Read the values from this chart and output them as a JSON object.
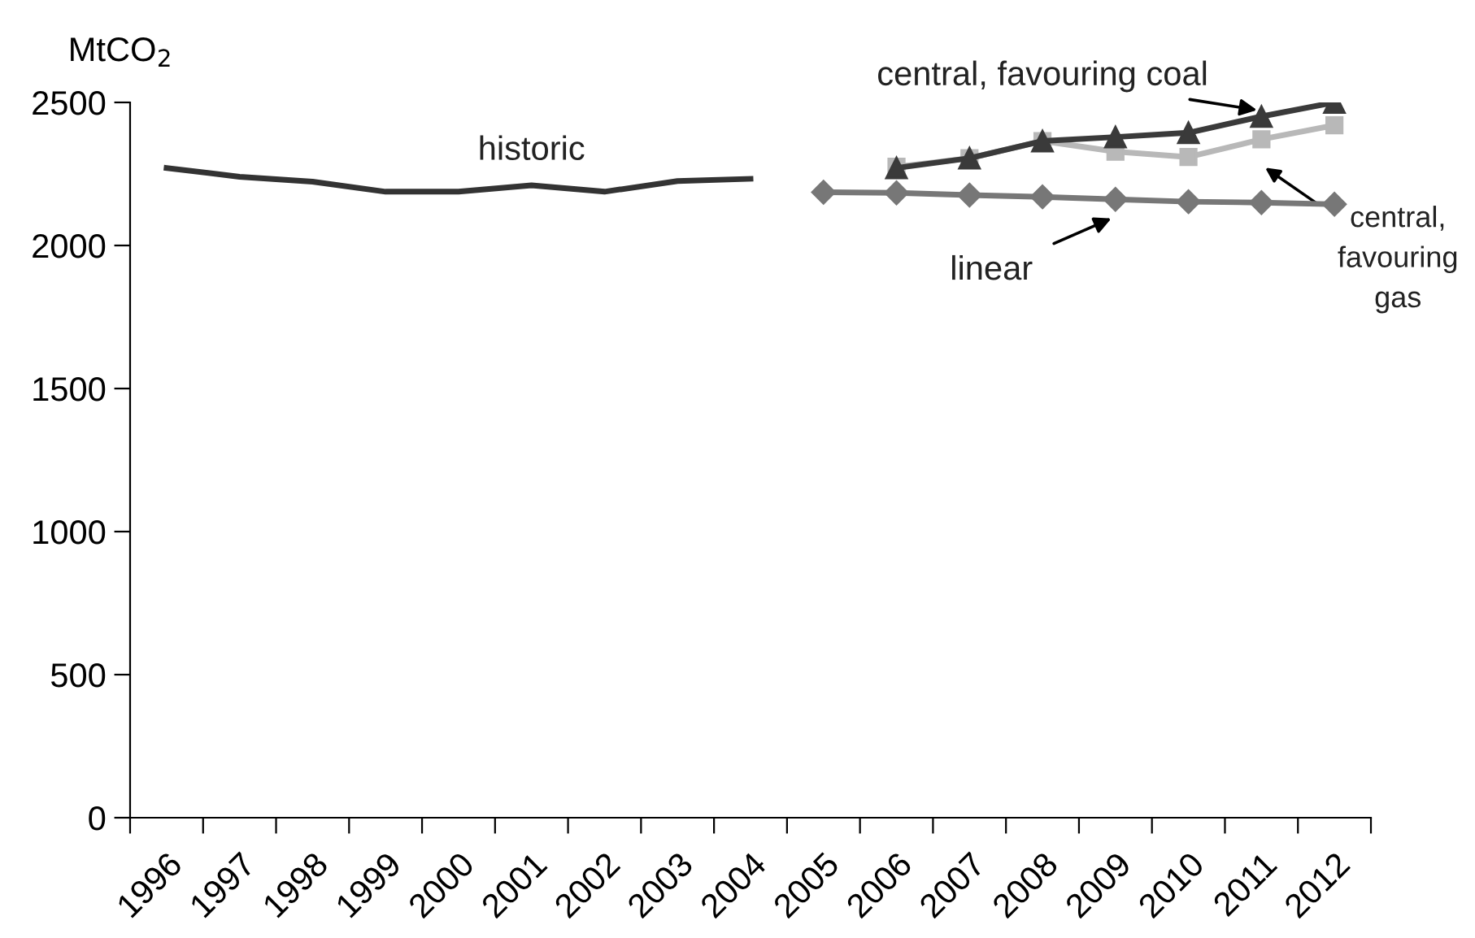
{
  "chart_data": {
    "type": "line",
    "ylabel": "MtCO$_{2}$",
    "categories": [
      "1996",
      "1997",
      "1998",
      "1999",
      "2000",
      "2001",
      "2002",
      "2003",
      "2004",
      "2005",
      "2006",
      "2007",
      "2008",
      "2009",
      "2010",
      "2011",
      "2012"
    ],
    "series": [
      {
        "name": "historic",
        "color": "#333333",
        "marker": "none",
        "values": [
          2271,
          2240,
          2223,
          2188,
          2188,
          2210,
          2188,
          2225,
          2233,
          null,
          null,
          null,
          null,
          null,
          null,
          null,
          null
        ]
      },
      {
        "name": "linear",
        "color": "#777777",
        "marker": "diamond",
        "values": [
          null,
          null,
          null,
          null,
          null,
          null,
          null,
          null,
          null,
          2186,
          2184,
          2176,
          2170,
          2161,
          2153,
          2150,
          2144
        ]
      },
      {
        "name": "central, favouring gas",
        "color": "#b8b8b8",
        "marker": "square",
        "values": [
          null,
          null,
          null,
          null,
          null,
          null,
          null,
          null,
          null,
          null,
          2275,
          2305,
          2365,
          2328,
          2309,
          2371,
          2420
        ]
      },
      {
        "name": "central, favouring coal",
        "color": "#3a3a3a",
        "marker": "triangle",
        "values": [
          null,
          null,
          null,
          null,
          null,
          null,
          null,
          null,
          null,
          null,
          2271,
          2305,
          2365,
          2379,
          2394,
          2451,
          2500
        ]
      }
    ],
    "ylim": [
      0,
      2500
    ],
    "yticks": [
      0,
      500,
      1000,
      1500,
      2000,
      2500
    ],
    "grid": false,
    "legend": false,
    "line_style": "solid"
  }
}
